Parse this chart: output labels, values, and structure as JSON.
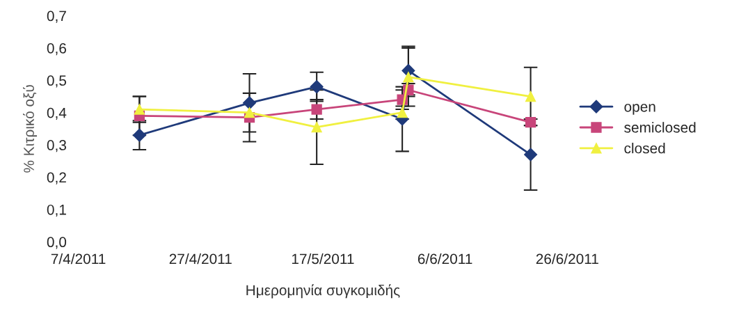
{
  "chart_data": {
    "type": "line",
    "xlabel": "Ημερομηνία συγκομιδής",
    "ylabel": "% Κιτρικό οξύ",
    "x": [
      "2011-04-17",
      "2011-05-05",
      "2011-05-16",
      "2011-05-30",
      "2011-05-31",
      "2011-06-20"
    ],
    "series": [
      {
        "name": "open",
        "color": "#1f3a7a",
        "marker": "diamond",
        "values": [
          0.33,
          0.43,
          0.48,
          0.38,
          0.53,
          0.27
        ],
        "errors": [
          0.045,
          0.09,
          0.045,
          0.1,
          0.075,
          0.11
        ]
      },
      {
        "name": "semiclosed",
        "color": "#c8457a",
        "marker": "square",
        "values": [
          0.39,
          0.385,
          0.41,
          0.44,
          0.47,
          0.37
        ],
        "errors": [
          0.06,
          0.075,
          0.03,
          0.03,
          0.02,
          0.01
        ]
      },
      {
        "name": "closed",
        "color": "#f0f040",
        "marker": "triangle",
        "values": [
          0.41,
          0.4,
          0.355,
          0.4,
          0.51,
          0.45
        ],
        "errors": [
          0.04,
          null,
          0.115,
          0.02,
          0.09,
          0.09
        ]
      }
    ],
    "xlim": [
      "2011-04-07",
      "2011-06-26"
    ],
    "xticks": [
      {
        "value": "2011-04-07",
        "label": "7/4/2011"
      },
      {
        "value": "2011-04-27",
        "label": "27/4/2011"
      },
      {
        "value": "2011-05-17",
        "label": "17/5/2011"
      },
      {
        "value": "2011-06-06",
        "label": "6/6/2011"
      },
      {
        "value": "2011-06-26",
        "label": "26/6/2011"
      }
    ],
    "ylim": [
      0,
      0.7
    ],
    "yticks": [
      {
        "value": 0,
        "label": "0,0"
      },
      {
        "value": 0.1,
        "label": "0,1"
      },
      {
        "value": 0.2,
        "label": "0,2"
      },
      {
        "value": 0.3,
        "label": "0,3"
      },
      {
        "value": 0.4,
        "label": "0,4"
      },
      {
        "value": 0.5,
        "label": "0,5"
      },
      {
        "value": 0.6,
        "label": "0,6"
      },
      {
        "value": 0.7,
        "label": "0,7"
      }
    ],
    "grid": false,
    "legend": "right",
    "line_style": "solid"
  }
}
